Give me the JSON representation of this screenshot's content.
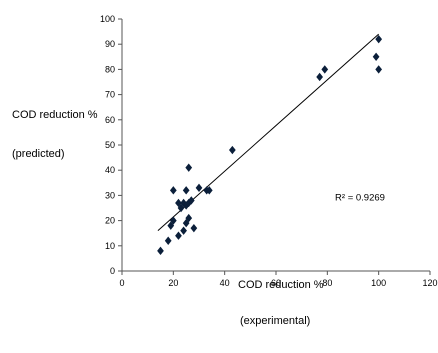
{
  "chart_data": {
    "type": "scatter",
    "ylabel_line1": "COD reduction %",
    "ylabel_line2": "(predicted)",
    "xlabel_line1": "COD reduction %",
    "xlabel_line2": "(experimental)",
    "xlim": [
      0,
      120
    ],
    "ylim": [
      0,
      100
    ],
    "xticks": [
      0,
      20,
      40,
      60,
      80,
      100,
      120
    ],
    "yticks": [
      0,
      10,
      20,
      30,
      40,
      50,
      60,
      70,
      80,
      90,
      100
    ],
    "grid": false,
    "marker_color": "#0b1f3a",
    "points": [
      {
        "x": 15,
        "y": 8
      },
      {
        "x": 18,
        "y": 12
      },
      {
        "x": 19,
        "y": 18
      },
      {
        "x": 20,
        "y": 32
      },
      {
        "x": 20,
        "y": 20
      },
      {
        "x": 22,
        "y": 14
      },
      {
        "x": 22,
        "y": 27
      },
      {
        "x": 23,
        "y": 25
      },
      {
        "x": 24,
        "y": 16
      },
      {
        "x": 24,
        "y": 27
      },
      {
        "x": 25,
        "y": 26
      },
      {
        "x": 25,
        "y": 32
      },
      {
        "x": 25,
        "y": 19
      },
      {
        "x": 26,
        "y": 21
      },
      {
        "x": 26,
        "y": 27
      },
      {
        "x": 26,
        "y": 41
      },
      {
        "x": 27,
        "y": 28
      },
      {
        "x": 28,
        "y": 17
      },
      {
        "x": 30,
        "y": 33
      },
      {
        "x": 33,
        "y": 32
      },
      {
        "x": 34,
        "y": 32
      },
      {
        "x": 43,
        "y": 48
      },
      {
        "x": 77,
        "y": 77
      },
      {
        "x": 79,
        "y": 80
      },
      {
        "x": 99,
        "y": 85
      },
      {
        "x": 100,
        "y": 80
      },
      {
        "x": 100,
        "y": 92
      }
    ],
    "trendline": {
      "x": [
        14,
        100
      ],
      "y": [
        16,
        94
      ]
    },
    "annotation": {
      "label": "R² = 0.9269",
      "x": 83,
      "y": 28
    }
  }
}
